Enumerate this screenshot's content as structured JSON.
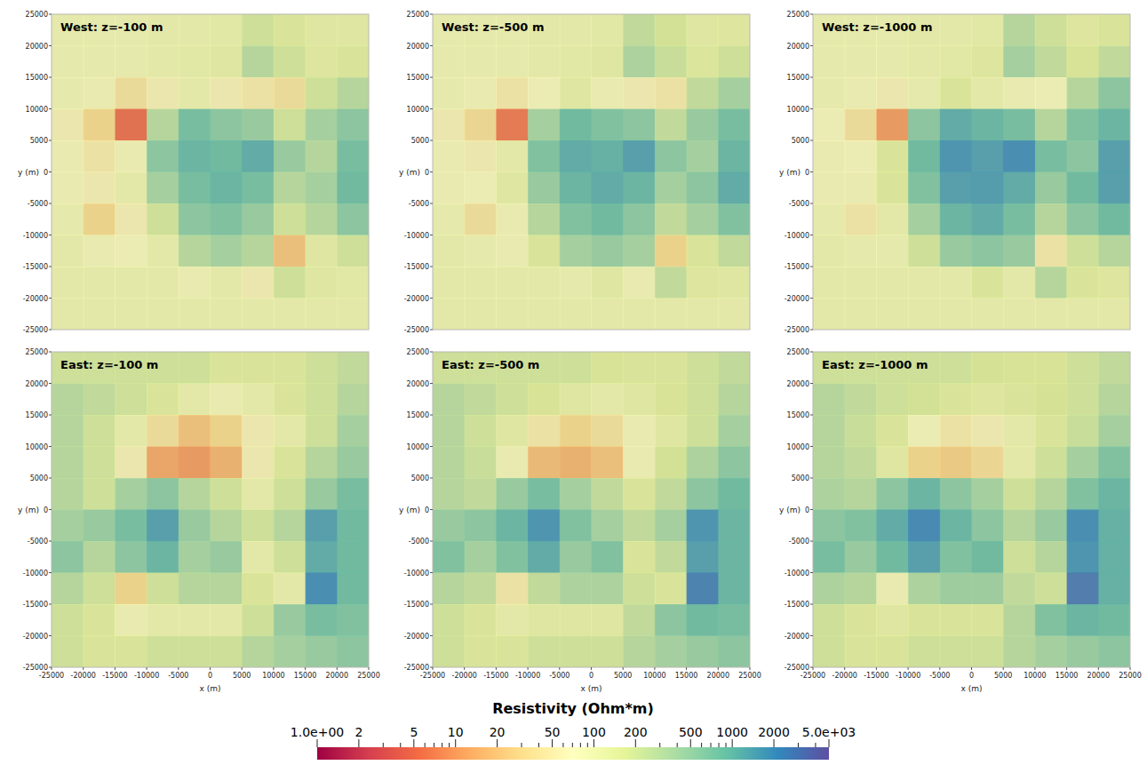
{
  "chart_data": [
    {
      "type": "heatmap",
      "title": "West: z=-100 m",
      "ylabel": "y (m)",
      "tick_labels": "y",
      "xlim": [
        -25000,
        25000
      ],
      "ylim": [
        -25000,
        25000
      ],
      "yticks": [
        -25000,
        -20000,
        -15000,
        -10000,
        -5000,
        0,
        5000,
        10000,
        15000,
        20000,
        25000
      ],
      "x": [
        -22500,
        -17500,
        -12500,
        -7500,
        -2500,
        2500,
        7500,
        12500,
        17500,
        22500
      ],
      "y": [
        22500,
        17500,
        12500,
        7500,
        2500,
        -2500,
        -7500,
        -12500,
        -17500,
        -22500
      ],
      "cells": [
        [
          90,
          90,
          90,
          100,
          100,
          110,
          200,
          150,
          120,
          120
        ],
        [
          90,
          90,
          90,
          100,
          110,
          120,
          300,
          200,
          130,
          150
        ],
        [
          90,
          80,
          40,
          60,
          100,
          60,
          50,
          40,
          200,
          300
        ],
        [
          60,
          30,
          5,
          300,
          800,
          600,
          500,
          200,
          400,
          600
        ],
        [
          80,
          50,
          80,
          600,
          1000,
          900,
          1200,
          500,
          300,
          800
        ],
        [
          80,
          60,
          100,
          400,
          800,
          1000,
          800,
          300,
          400,
          900
        ],
        [
          90,
          30,
          60,
          200,
          600,
          700,
          500,
          200,
          300,
          600
        ],
        [
          100,
          80,
          70,
          100,
          300,
          400,
          300,
          20,
          120,
          200
        ],
        [
          100,
          100,
          100,
          100,
          80,
          100,
          60,
          200,
          120,
          110
        ],
        [
          100,
          100,
          100,
          100,
          100,
          100,
          100,
          100,
          100,
          100
        ]
      ]
    },
    {
      "type": "heatmap",
      "title": "West: z=-500 m",
      "ylabel": "y (m)",
      "tick_labels": "y",
      "xlim": [
        -25000,
        25000
      ],
      "ylim": [
        -25000,
        25000
      ],
      "yticks": [
        -25000,
        -20000,
        -15000,
        -10000,
        -5000,
        0,
        5000,
        10000,
        15000,
        20000,
        25000
      ],
      "x": [
        -22500,
        -17500,
        -12500,
        -7500,
        -2500,
        2500,
        7500,
        12500,
        17500,
        22500
      ],
      "y": [
        22500,
        17500,
        12500,
        7500,
        2500,
        -2500,
        -7500,
        -12500,
        -17500,
        -22500
      ],
      "cells": [
        [
          90,
          90,
          90,
          100,
          100,
          110,
          250,
          180,
          120,
          130
        ],
        [
          90,
          90,
          90,
          100,
          110,
          120,
          350,
          220,
          140,
          200
        ],
        [
          90,
          80,
          50,
          70,
          120,
          80,
          60,
          50,
          250,
          400
        ],
        [
          60,
          35,
          6,
          400,
          900,
          700,
          600,
          250,
          500,
          800
        ],
        [
          80,
          60,
          100,
          700,
          1200,
          1100,
          1500,
          600,
          400,
          1000
        ],
        [
          80,
          70,
          120,
          500,
          1000,
          1200,
          1000,
          400,
          600,
          1200
        ],
        [
          90,
          40,
          80,
          300,
          700,
          900,
          600,
          250,
          400,
          700
        ],
        [
          100,
          90,
          80,
          150,
          400,
          500,
          400,
          30,
          150,
          250
        ],
        [
          100,
          100,
          100,
          100,
          90,
          120,
          80,
          250,
          130,
          120
        ],
        [
          100,
          100,
          100,
          100,
          100,
          100,
          100,
          100,
          100,
          100
        ]
      ]
    },
    {
      "type": "heatmap",
      "title": "West: z=-1000 m",
      "ylabel": "y (m)",
      "tick_labels": "y",
      "xlim": [
        -25000,
        25000
      ],
      "ylim": [
        -25000,
        25000
      ],
      "yticks": [
        -25000,
        -20000,
        -15000,
        -10000,
        -5000,
        0,
        5000,
        10000,
        15000,
        20000,
        25000
      ],
      "x": [
        -22500,
        -17500,
        -12500,
        -7500,
        -2500,
        2500,
        7500,
        12500,
        17500,
        22500
      ],
      "y": [
        22500,
        17500,
        12500,
        7500,
        2500,
        -2500,
        -7500,
        -12500,
        -17500,
        -22500
      ],
      "cells": [
        [
          90,
          90,
          90,
          100,
          100,
          110,
          300,
          200,
          130,
          150
        ],
        [
          90,
          90,
          90,
          100,
          110,
          130,
          400,
          250,
          160,
          250
        ],
        [
          90,
          80,
          60,
          90,
          150,
          100,
          80,
          70,
          300,
          600
        ],
        [
          70,
          40,
          10,
          600,
          1200,
          1000,
          800,
          300,
          700,
          1000
        ],
        [
          80,
          70,
          150,
          900,
          1800,
          1500,
          2000,
          800,
          600,
          1500
        ],
        [
          80,
          80,
          150,
          700,
          1500,
          1600,
          1200,
          500,
          900,
          1500
        ],
        [
          90,
          50,
          100,
          400,
          1000,
          1200,
          800,
          300,
          600,
          900
        ],
        [
          100,
          90,
          90,
          200,
          500,
          600,
          500,
          50,
          200,
          300
        ],
        [
          100,
          100,
          100,
          100,
          100,
          150,
          100,
          300,
          150,
          130
        ],
        [
          100,
          100,
          100,
          100,
          100,
          100,
          100,
          100,
          100,
          100
        ]
      ]
    },
    {
      "type": "heatmap",
      "title": "East: z=-100 m",
      "xlabel": "x (m)",
      "ylabel": "y (m)",
      "xlim": [
        -25000,
        25000
      ],
      "ylim": [
        -25000,
        25000
      ],
      "xticks": [
        -25000,
        -20000,
        -15000,
        -10000,
        -5000,
        0,
        5000,
        10000,
        15000,
        20000,
        25000
      ],
      "yticks": [
        -25000,
        -20000,
        -15000,
        -10000,
        -5000,
        0,
        5000,
        10000,
        15000,
        20000,
        25000
      ],
      "x": [
        -22500,
        -17500,
        -12500,
        -7500,
        -2500,
        2500,
        7500,
        12500,
        17500,
        22500
      ],
      "y": [
        22500,
        17500,
        12500,
        7500,
        2500,
        -2500,
        -7500,
        -12500,
        -17500,
        -22500
      ],
      "cells": [
        [
          200,
          200,
          200,
          200,
          200,
          150,
          150,
          150,
          200,
          250
        ],
        [
          300,
          250,
          200,
          150,
          100,
          80,
          100,
          150,
          200,
          300
        ],
        [
          300,
          200,
          100,
          40,
          20,
          30,
          60,
          100,
          200,
          400
        ],
        [
          300,
          200,
          60,
          12,
          10,
          15,
          60,
          150,
          300,
          500
        ],
        [
          300,
          200,
          400,
          600,
          300,
          200,
          100,
          200,
          500,
          800
        ],
        [
          400,
          500,
          800,
          1500,
          500,
          300,
          200,
          300,
          1500,
          900
        ],
        [
          600,
          300,
          600,
          1000,
          400,
          500,
          100,
          200,
          1200,
          900
        ],
        [
          300,
          200,
          30,
          200,
          300,
          300,
          150,
          100,
          2000,
          900
        ],
        [
          200,
          150,
          80,
          100,
          100,
          100,
          200,
          500,
          800,
          700
        ],
        [
          200,
          150,
          150,
          200,
          200,
          200,
          300,
          400,
          500,
          600
        ]
      ]
    },
    {
      "type": "heatmap",
      "title": "East: z=-500 m",
      "xlabel": "x (m)",
      "ylabel": "y (m)",
      "xlim": [
        -25000,
        25000
      ],
      "ylim": [
        -25000,
        25000
      ],
      "xticks": [
        -25000,
        -20000,
        -15000,
        -10000,
        -5000,
        0,
        5000,
        10000,
        15000,
        20000,
        25000
      ],
      "yticks": [
        -25000,
        -20000,
        -15000,
        -10000,
        -5000,
        0,
        5000,
        10000,
        15000,
        20000,
        25000
      ],
      "x": [
        -22500,
        -17500,
        -12500,
        -7500,
        -2500,
        2500,
        7500,
        12500,
        17500,
        22500
      ],
      "y": [
        22500,
        17500,
        12500,
        7500,
        2500,
        -2500,
        -7500,
        -12500,
        -17500,
        -22500
      ],
      "cells": [
        [
          200,
          200,
          200,
          200,
          200,
          160,
          150,
          150,
          200,
          250
        ],
        [
          300,
          250,
          200,
          160,
          120,
          100,
          120,
          160,
          200,
          300
        ],
        [
          300,
          200,
          120,
          50,
          30,
          40,
          80,
          120,
          200,
          400
        ],
        [
          300,
          220,
          80,
          18,
          15,
          20,
          80,
          180,
          350,
          600
        ],
        [
          300,
          250,
          500,
          800,
          400,
          250,
          150,
          250,
          600,
          900
        ],
        [
          500,
          600,
          1000,
          1800,
          700,
          400,
          250,
          400,
          1800,
          1000
        ],
        [
          700,
          400,
          700,
          1200,
          500,
          700,
          150,
          250,
          1500,
          1000
        ],
        [
          300,
          250,
          50,
          250,
          350,
          350,
          200,
          150,
          2500,
          1000
        ],
        [
          200,
          150,
          100,
          120,
          120,
          120,
          250,
          600,
          900,
          800
        ],
        [
          200,
          150,
          150,
          200,
          200,
          200,
          300,
          400,
          500,
          600
        ]
      ]
    },
    {
      "type": "heatmap",
      "title": "East: z=-1000 m",
      "xlabel": "x (m)",
      "ylabel": "y (m)",
      "xlim": [
        -25000,
        25000
      ],
      "ylim": [
        -25000,
        25000
      ],
      "xticks": [
        -25000,
        -20000,
        -15000,
        -10000,
        -5000,
        0,
        5000,
        10000,
        15000,
        20000,
        25000
      ],
      "yticks": [
        -25000,
        -20000,
        -15000,
        -10000,
        -5000,
        0,
        5000,
        10000,
        15000,
        20000,
        25000
      ],
      "x": [
        -22500,
        -17500,
        -12500,
        -7500,
        -2500,
        2500,
        7500,
        12500,
        17500,
        22500
      ],
      "y": [
        22500,
        17500,
        12500,
        7500,
        2500,
        -2500,
        -7500,
        -12500,
        -17500,
        -22500
      ],
      "cells": [
        [
          200,
          200,
          200,
          200,
          200,
          170,
          160,
          160,
          200,
          250
        ],
        [
          300,
          250,
          200,
          180,
          150,
          130,
          150,
          170,
          200,
          300
        ],
        [
          300,
          220,
          150,
          70,
          50,
          60,
          100,
          150,
          220,
          400
        ],
        [
          300,
          250,
          120,
          30,
          25,
          35,
          100,
          200,
          400,
          700
        ],
        [
          350,
          300,
          600,
          1000,
          600,
          400,
          200,
          300,
          700,
          1000
        ],
        [
          600,
          700,
          1200,
          2200,
          1000,
          600,
          300,
          500,
          2000,
          1100
        ],
        [
          800,
          500,
          900,
          1500,
          700,
          900,
          200,
          300,
          1800,
          1100
        ],
        [
          350,
          300,
          80,
          350,
          450,
          450,
          250,
          200,
          2800,
          1100
        ],
        [
          200,
          150,
          120,
          150,
          150,
          150,
          300,
          700,
          1000,
          900
        ],
        [
          200,
          150,
          150,
          200,
          200,
          200,
          300,
          400,
          500,
          600
        ]
      ]
    }
  ],
  "colorbar": {
    "title": "Resistivity (Ohm*m)",
    "log": true,
    "range": [
      1,
      5000
    ],
    "ticks": [
      {
        "value": 1,
        "label": "1.0e+00"
      },
      2,
      5,
      10,
      20,
      50,
      100,
      200,
      500,
      1000,
      2000,
      {
        "value": 5000,
        "label": "5.0e+03"
      }
    ],
    "minor_ticks": [
      3,
      4,
      6,
      7,
      8,
      9,
      30,
      40,
      60,
      70,
      80,
      90,
      300,
      400,
      600,
      700,
      800,
      900,
      3000,
      4000
    ]
  }
}
